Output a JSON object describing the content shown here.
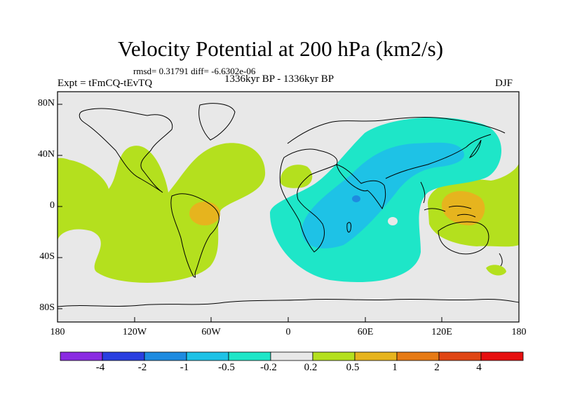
{
  "title": "Velocity Potential at 200 hPa (km2/s)",
  "stats": "rmsd= 0.31791 diff= -6.6302e-06",
  "left_label": "Expt = tFmCQ-tEvTQ",
  "center_label": "1336kyr BP - 1336kyr BP",
  "right_label": "DJF",
  "y_ticks": [
    "80N",
    "40N",
    "0",
    "40S",
    "80S"
  ],
  "x_ticks": [
    "180",
    "120W",
    "60W",
    "0",
    "60E",
    "120E",
    "180"
  ],
  "colorbar": {
    "labels": [
      "-4",
      "-2",
      "-1",
      "-0.5",
      "-0.2",
      "0.2",
      "0.5",
      "1",
      "2",
      "4"
    ],
    "colors": [
      "#8a2be2",
      "#2a3fe0",
      "#1e8be0",
      "#1ec2e6",
      "#1ee6c8",
      "#e8e8e8",
      "#b4e01e",
      "#e6b41e",
      "#e67a14",
      "#e04614",
      "#e60f0f"
    ]
  },
  "colors": {
    "ocean_bg": "#e8e8e8",
    "pos_weak": "#b4e01e",
    "pos_mid": "#e6b41e",
    "neg_weak": "#1ee6c8",
    "neg_mid": "#1ec2e6",
    "neg_strong": "#1e8be0"
  }
}
